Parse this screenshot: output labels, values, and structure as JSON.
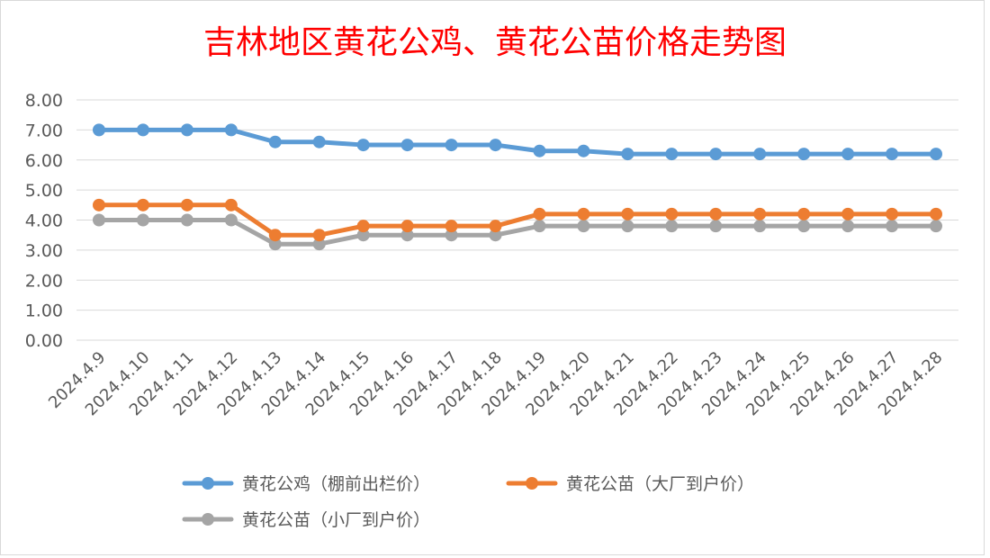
{
  "chart_data": {
    "type": "line",
    "title": "吉林地区黄花公鸡、黄花公苗价格走势图",
    "categories": [
      "2024.4.9",
      "2024.4.10",
      "2024.4.11",
      "2024.4.12",
      "2024.4.13",
      "2024.4.14",
      "2024.4.15",
      "2024.4.16",
      "2024.4.17",
      "2024.4.18",
      "2024.4.19",
      "2024.4.20",
      "2024.4.21",
      "2024.4.22",
      "2024.4.23",
      "2024.4.24",
      "2024.4.25",
      "2024.4.26",
      "2024.4.27",
      "2024.4.28"
    ],
    "series": [
      {
        "name": "黄花公鸡（棚前出栏价）",
        "color": "#5b9bd5",
        "values": [
          7.0,
          7.0,
          7.0,
          7.0,
          6.6,
          6.6,
          6.5,
          6.5,
          6.5,
          6.5,
          6.3,
          6.3,
          6.2,
          6.2,
          6.2,
          6.2,
          6.2,
          6.2,
          6.2,
          6.2
        ]
      },
      {
        "name": "黄花公苗（大厂到户价）",
        "color": "#ed7d31",
        "values": [
          4.5,
          4.5,
          4.5,
          4.5,
          3.5,
          3.5,
          3.8,
          3.8,
          3.8,
          3.8,
          4.2,
          4.2,
          4.2,
          4.2,
          4.2,
          4.2,
          4.2,
          4.2,
          4.2,
          4.2
        ]
      },
      {
        "name": "黄花公苗（小厂到户价）",
        "color": "#a5a5a5",
        "values": [
          4.0,
          4.0,
          4.0,
          4.0,
          3.2,
          3.2,
          3.5,
          3.5,
          3.5,
          3.5,
          3.8,
          3.8,
          3.8,
          3.8,
          3.8,
          3.8,
          3.8,
          3.8,
          3.8,
          3.8
        ]
      }
    ],
    "y_ticks": [
      "0.00",
      "1.00",
      "2.00",
      "3.00",
      "4.00",
      "5.00",
      "6.00",
      "7.00",
      "8.00"
    ],
    "ylim": [
      0,
      8
    ],
    "xlabel": "",
    "ylabel": "",
    "grid": true,
    "legend_position": "bottom"
  }
}
